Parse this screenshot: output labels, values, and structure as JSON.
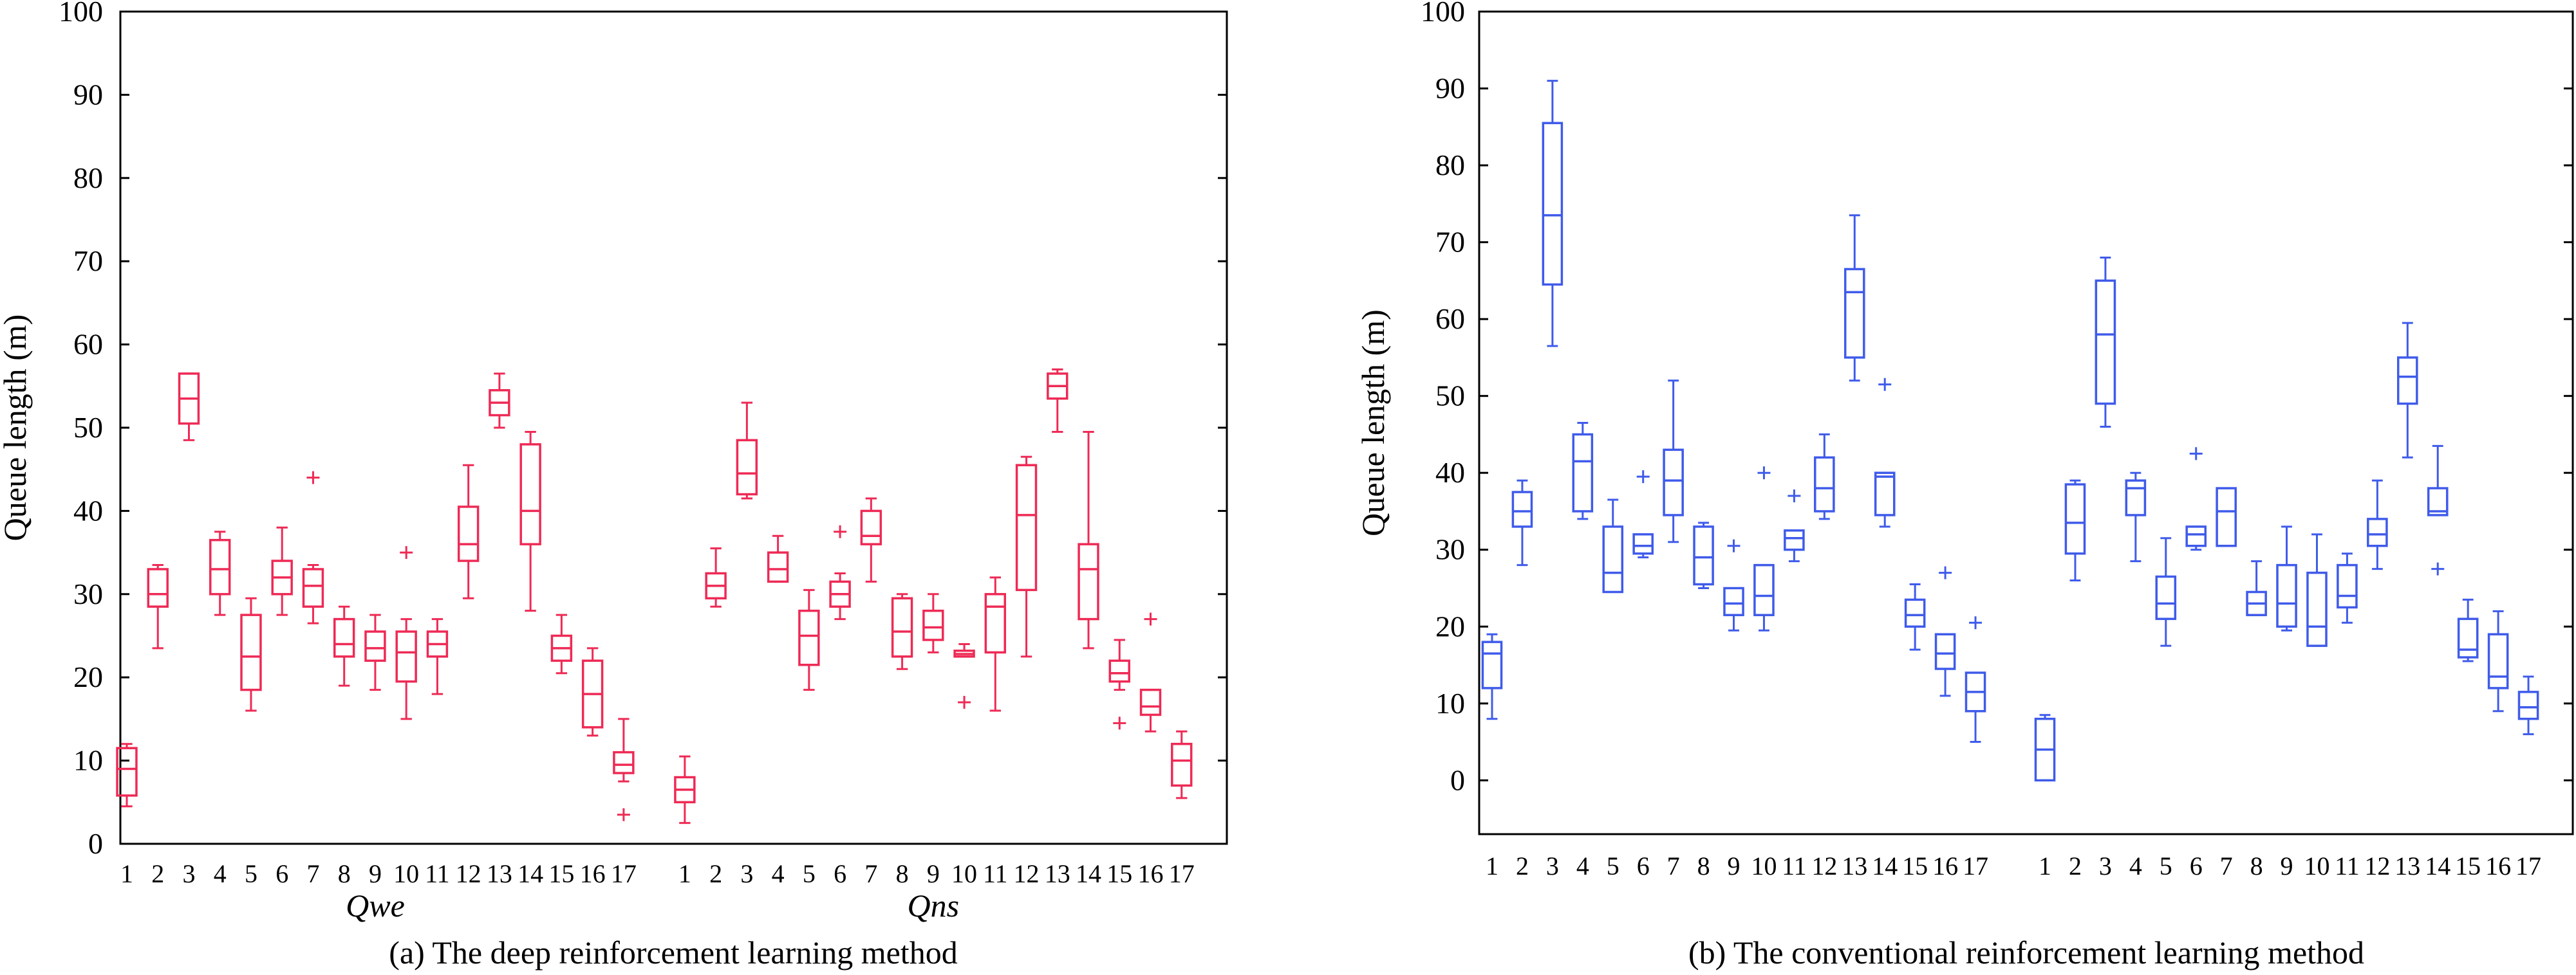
{
  "chart_data": [
    {
      "type": "box",
      "ylabel": "Queue length (m)",
      "ylim": [
        0,
        100
      ],
      "yticks": [
        0,
        10,
        20,
        30,
        40,
        50,
        60,
        70,
        80,
        90,
        100
      ],
      "categories": [
        "1",
        "2",
        "3",
        "4",
        "5",
        "6",
        "7",
        "8",
        "9",
        "10",
        "11",
        "12",
        "13",
        "14",
        "15",
        "16",
        "17"
      ],
      "color": "#ee2a55",
      "caption": "(a)  The deep reinforcement learning method",
      "groups": [
        {
          "name": "Qwe",
          "boxes": [
            {
              "q1": 5.8,
              "median": 9.0,
              "q3": 11.5,
              "low": 4.5,
              "high": 12.0,
              "outliers": []
            },
            {
              "q1": 28.5,
              "median": 30.0,
              "q3": 33.0,
              "low": 23.5,
              "high": 33.5,
              "outliers": []
            },
            {
              "q1": 50.5,
              "median": 53.5,
              "q3": 56.5,
              "low": 48.5,
              "high": 56.5,
              "outliers": []
            },
            {
              "q1": 30.0,
              "median": 33.0,
              "q3": 36.5,
              "low": 27.5,
              "high": 37.5,
              "outliers": []
            },
            {
              "q1": 18.5,
              "median": 22.5,
              "q3": 27.5,
              "low": 16.0,
              "high": 29.5,
              "outliers": []
            },
            {
              "q1": 30.0,
              "median": 32.0,
              "q3": 34.0,
              "low": 27.5,
              "high": 38.0,
              "outliers": []
            },
            {
              "q1": 28.5,
              "median": 31.0,
              "q3": 33.0,
              "low": 26.5,
              "high": 33.5,
              "outliers": [
                44.0
              ]
            },
            {
              "q1": 22.5,
              "median": 24.0,
              "q3": 27.0,
              "low": 19.0,
              "high": 28.5,
              "outliers": []
            },
            {
              "q1": 22.0,
              "median": 23.5,
              "q3": 25.5,
              "low": 18.5,
              "high": 27.5,
              "outliers": []
            },
            {
              "q1": 19.5,
              "median": 23.0,
              "q3": 25.5,
              "low": 15.0,
              "high": 27.0,
              "outliers": [
                35.0
              ]
            },
            {
              "q1": 22.5,
              "median": 24.0,
              "q3": 25.5,
              "low": 18.0,
              "high": 27.0,
              "outliers": []
            },
            {
              "q1": 34.0,
              "median": 36.0,
              "q3": 40.5,
              "low": 29.5,
              "high": 45.5,
              "outliers": []
            },
            {
              "q1": 51.5,
              "median": 53.0,
              "q3": 54.5,
              "low": 50.0,
              "high": 56.5,
              "outliers": []
            },
            {
              "q1": 36.0,
              "median": 40.0,
              "q3": 48.0,
              "low": 28.0,
              "high": 49.5,
              "outliers": []
            },
            {
              "q1": 22.0,
              "median": 23.5,
              "q3": 25.0,
              "low": 20.5,
              "high": 27.5,
              "outliers": []
            },
            {
              "q1": 14.0,
              "median": 18.0,
              "q3": 22.0,
              "low": 13.0,
              "high": 23.5,
              "outliers": []
            },
            {
              "q1": 8.5,
              "median": 9.5,
              "q3": 11.0,
              "low": 7.5,
              "high": 15.0,
              "outliers": [
                3.5
              ]
            }
          ]
        },
        {
          "name": "Qns",
          "boxes": [
            {
              "q1": 5.0,
              "median": 6.5,
              "q3": 8.0,
              "low": 2.5,
              "high": 10.5,
              "outliers": []
            },
            {
              "q1": 29.5,
              "median": 31.0,
              "q3": 32.5,
              "low": 28.5,
              "high": 35.5,
              "outliers": []
            },
            {
              "q1": 42.0,
              "median": 44.5,
              "q3": 48.5,
              "low": 41.5,
              "high": 53.0,
              "outliers": []
            },
            {
              "q1": 31.5,
              "median": 33.0,
              "q3": 35.0,
              "low": 31.5,
              "high": 37.0,
              "outliers": []
            },
            {
              "q1": 21.5,
              "median": 25.0,
              "q3": 28.0,
              "low": 18.5,
              "high": 30.5,
              "outliers": []
            },
            {
              "q1": 28.5,
              "median": 30.0,
              "q3": 31.5,
              "low": 27.0,
              "high": 32.5,
              "outliers": [
                37.5
              ]
            },
            {
              "q1": 36.0,
              "median": 37.0,
              "q3": 40.0,
              "low": 31.5,
              "high": 41.5,
              "outliers": []
            },
            {
              "q1": 22.5,
              "median": 25.5,
              "q3": 29.5,
              "low": 21.0,
              "high": 30.0,
              "outliers": []
            },
            {
              "q1": 24.5,
              "median": 26.0,
              "q3": 28.0,
              "low": 23.0,
              "high": 30.0,
              "outliers": []
            },
            {
              "q1": 22.5,
              "median": 22.8,
              "q3": 23.2,
              "low": 22.5,
              "high": 24.0,
              "outliers": [
                17.0
              ]
            },
            {
              "q1": 23.0,
              "median": 28.5,
              "q3": 30.0,
              "low": 16.0,
              "high": 32.0,
              "outliers": []
            },
            {
              "q1": 30.5,
              "median": 39.5,
              "q3": 45.5,
              "low": 22.5,
              "high": 46.5,
              "outliers": []
            },
            {
              "q1": 53.5,
              "median": 55.0,
              "q3": 56.5,
              "low": 49.5,
              "high": 57.0,
              "outliers": []
            },
            {
              "q1": 27.0,
              "median": 33.0,
              "q3": 36.0,
              "low": 23.5,
              "high": 49.5,
              "outliers": []
            },
            {
              "q1": 19.5,
              "median": 20.5,
              "q3": 22.0,
              "low": 18.5,
              "high": 24.5,
              "outliers": [
                14.5
              ]
            },
            {
              "q1": 15.5,
              "median": 16.5,
              "q3": 18.5,
              "low": 13.5,
              "high": 18.5,
              "outliers": [
                27.0
              ]
            },
            {
              "q1": 7.0,
              "median": 10.0,
              "q3": 12.0,
              "low": 5.5,
              "high": 13.5,
              "outliers": []
            }
          ]
        }
      ]
    },
    {
      "type": "box",
      "ylabel": "Queue length (m)",
      "ylim": [
        -7,
        100
      ],
      "yticks": [
        0,
        10,
        20,
        30,
        40,
        50,
        60,
        70,
        80,
        90,
        100
      ],
      "categories": [
        "1",
        "2",
        "3",
        "4",
        "5",
        "6",
        "7",
        "8",
        "9",
        "10",
        "11",
        "12",
        "13",
        "14",
        "15",
        "16",
        "17"
      ],
      "color": "#3f5bea",
      "caption": "(b) The conventional reinforcement learning method",
      "groups": [
        {
          "name": "",
          "boxes": [
            {
              "q1": 12.0,
              "median": 16.5,
              "q3": 18.0,
              "low": 8.0,
              "high": 19.0,
              "outliers": []
            },
            {
              "q1": 33.0,
              "median": 35.0,
              "q3": 37.5,
              "low": 28.0,
              "high": 39.0,
              "outliers": []
            },
            {
              "q1": 64.5,
              "median": 73.5,
              "q3": 85.5,
              "low": 56.5,
              "high": 91.0,
              "outliers": []
            },
            {
              "q1": 35.0,
              "median": 41.5,
              "q3": 45.0,
              "low": 34.0,
              "high": 46.5,
              "outliers": []
            },
            {
              "q1": 24.5,
              "median": 27.0,
              "q3": 33.0,
              "low": 24.5,
              "high": 36.5,
              "outliers": []
            },
            {
              "q1": 29.5,
              "median": 30.5,
              "q3": 32.0,
              "low": 29.0,
              "high": 32.0,
              "outliers": [
                39.5
              ]
            },
            {
              "q1": 34.5,
              "median": 39.0,
              "q3": 43.0,
              "low": 31.0,
              "high": 52.0,
              "outliers": []
            },
            {
              "q1": 25.5,
              "median": 29.0,
              "q3": 33.0,
              "low": 25.0,
              "high": 33.5,
              "outliers": []
            },
            {
              "q1": 21.5,
              "median": 23.0,
              "q3": 25.0,
              "low": 19.5,
              "high": 25.0,
              "outliers": [
                30.5
              ]
            },
            {
              "q1": 21.5,
              "median": 24.0,
              "q3": 28.0,
              "low": 19.5,
              "high": 28.0,
              "outliers": [
                40.0
              ]
            },
            {
              "q1": 30.0,
              "median": 31.5,
              "q3": 32.5,
              "low": 28.5,
              "high": 32.5,
              "outliers": [
                37.0
              ]
            },
            {
              "q1": 35.0,
              "median": 38.0,
              "q3": 42.0,
              "low": 34.0,
              "high": 45.0,
              "outliers": []
            },
            {
              "q1": 55.0,
              "median": 63.5,
              "q3": 66.5,
              "low": 52.0,
              "high": 73.5,
              "outliers": []
            },
            {
              "q1": 34.5,
              "median": 39.5,
              "q3": 40.0,
              "low": 33.0,
              "high": 40.0,
              "outliers": [
                51.5
              ]
            },
            {
              "q1": 20.0,
              "median": 21.5,
              "q3": 23.5,
              "low": 17.0,
              "high": 25.5,
              "outliers": []
            },
            {
              "q1": 14.5,
              "median": 16.5,
              "q3": 19.0,
              "low": 11.0,
              "high": 19.0,
              "outliers": [
                27.0
              ]
            },
            {
              "q1": 9.0,
              "median": 11.5,
              "q3": 14.0,
              "low": 5.0,
              "high": 14.0,
              "outliers": [
                20.5
              ]
            }
          ]
        },
        {
          "name": "",
          "boxes": [
            {
              "q1": 0.0,
              "median": 4.0,
              "q3": 8.0,
              "low": 0.0,
              "high": 8.5,
              "outliers": []
            },
            {
              "q1": 29.5,
              "median": 33.5,
              "q3": 38.5,
              "low": 26.0,
              "high": 39.0,
              "outliers": []
            },
            {
              "q1": 49.0,
              "median": 58.0,
              "q3": 65.0,
              "low": 46.0,
              "high": 68.0,
              "outliers": []
            },
            {
              "q1": 34.5,
              "median": 38.0,
              "q3": 39.0,
              "low": 28.5,
              "high": 40.0,
              "outliers": []
            },
            {
              "q1": 21.0,
              "median": 23.0,
              "q3": 26.5,
              "low": 17.5,
              "high": 31.5,
              "outliers": []
            },
            {
              "q1": 30.5,
              "median": 32.0,
              "q3": 33.0,
              "low": 30.0,
              "high": 33.0,
              "outliers": [
                42.5
              ]
            },
            {
              "q1": 30.5,
              "median": 35.0,
              "q3": 38.0,
              "low": 30.5,
              "high": 38.0,
              "outliers": []
            },
            {
              "q1": 21.5,
              "median": 23.0,
              "q3": 24.5,
              "low": 21.5,
              "high": 28.5,
              "outliers": []
            },
            {
              "q1": 20.0,
              "median": 23.0,
              "q3": 28.0,
              "low": 19.5,
              "high": 33.0,
              "outliers": []
            },
            {
              "q1": 17.5,
              "median": 20.0,
              "q3": 27.0,
              "low": 17.5,
              "high": 32.0,
              "outliers": []
            },
            {
              "q1": 22.5,
              "median": 24.0,
              "q3": 28.0,
              "low": 20.5,
              "high": 29.5,
              "outliers": []
            },
            {
              "q1": 30.5,
              "median": 32.0,
              "q3": 34.0,
              "low": 27.5,
              "high": 39.0,
              "outliers": []
            },
            {
              "q1": 49.0,
              "median": 52.5,
              "q3": 55.0,
              "low": 42.0,
              "high": 59.5,
              "outliers": []
            },
            {
              "q1": 34.5,
              "median": 35.0,
              "q3": 38.0,
              "low": 34.5,
              "high": 43.5,
              "outliers": [
                27.5
              ]
            },
            {
              "q1": 16.0,
              "median": 17.0,
              "q3": 21.0,
              "low": 15.5,
              "high": 23.5,
              "outliers": []
            },
            {
              "q1": 12.0,
              "median": 13.5,
              "q3": 19.0,
              "low": 9.0,
              "high": 22.0,
              "outliers": []
            },
            {
              "q1": 8.0,
              "median": 9.5,
              "q3": 11.5,
              "low": 6.0,
              "high": 13.5,
              "outliers": []
            }
          ]
        }
      ]
    }
  ]
}
